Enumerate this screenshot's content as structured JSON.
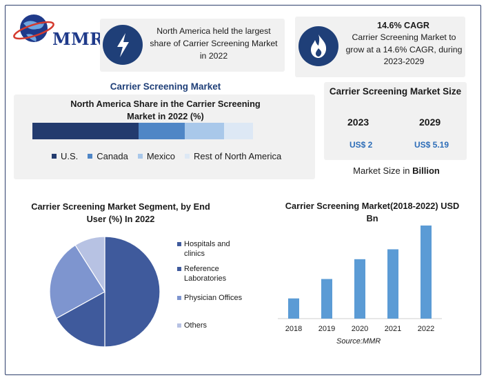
{
  "brand": {
    "logo_text": "MMR"
  },
  "highlights": {
    "region": {
      "icon": "lightning-bolt-icon",
      "text": "North America held the largest share of Carrier Screening Market in 2022"
    },
    "cagr": {
      "icon": "flame-icon",
      "title": "14.6% CAGR",
      "text": "Carrier Screening Market to grow at a 14.6% CAGR, during 2023-2029"
    }
  },
  "section_title": "Carrier Screening Market",
  "market_size": {
    "title": "Carrier Screening Market Size",
    "years": [
      "2023",
      "2029"
    ],
    "values": [
      "US$ 2",
      "US$ 5.19"
    ],
    "note_prefix": "Market Size in ",
    "note_unit": "Billion"
  },
  "colors": {
    "navy": "#233b6e",
    "mid_blue": "#4f86c6",
    "light_blue": "#a9c8ea",
    "pale_blue": "#dde8f5",
    "bar_blue": "#5b9bd5",
    "pie_dark": "#3f5a9c",
    "pie_mid": "#7e95cf",
    "pie_light": "#b7c2e3"
  },
  "chart_data": [
    {
      "type": "bar",
      "title": "North America Share in the Carrier Screening Market in 2022 (%)",
      "orientation": "horizontal-stacked",
      "categories": [
        "U.S.",
        "Canada",
        "Mexico",
        "Rest of North America"
      ],
      "values": [
        48,
        21,
        18,
        13
      ],
      "colors": [
        "#233b6e",
        "#4f86c6",
        "#a9c8ea",
        "#dde8f5"
      ],
      "legend": "bottom"
    },
    {
      "type": "pie",
      "title": "Carrier Screening Market Segment, by End User (%) In 2022",
      "categories": [
        "Hospitals and clinics",
        "Reference Laboratories",
        "Physician Offices",
        "Others"
      ],
      "values": [
        50,
        17,
        24,
        9
      ],
      "colors": [
        "#3f5a9c",
        "#3f5a9c",
        "#7e95cf",
        "#b7c2e3"
      ],
      "legend": "right"
    },
    {
      "type": "bar",
      "title": "Carrier Screening Market(2018-2022) USD Bn",
      "categories": [
        "2018",
        "2019",
        "2020",
        "2021",
        "2022"
      ],
      "values": [
        1.02,
        2.0,
        3.0,
        3.5,
        4.7
      ],
      "ylim": [
        0,
        4.7
      ],
      "color": "#5b9bd5",
      "grid": false,
      "source": "Source:MMR"
    }
  ]
}
